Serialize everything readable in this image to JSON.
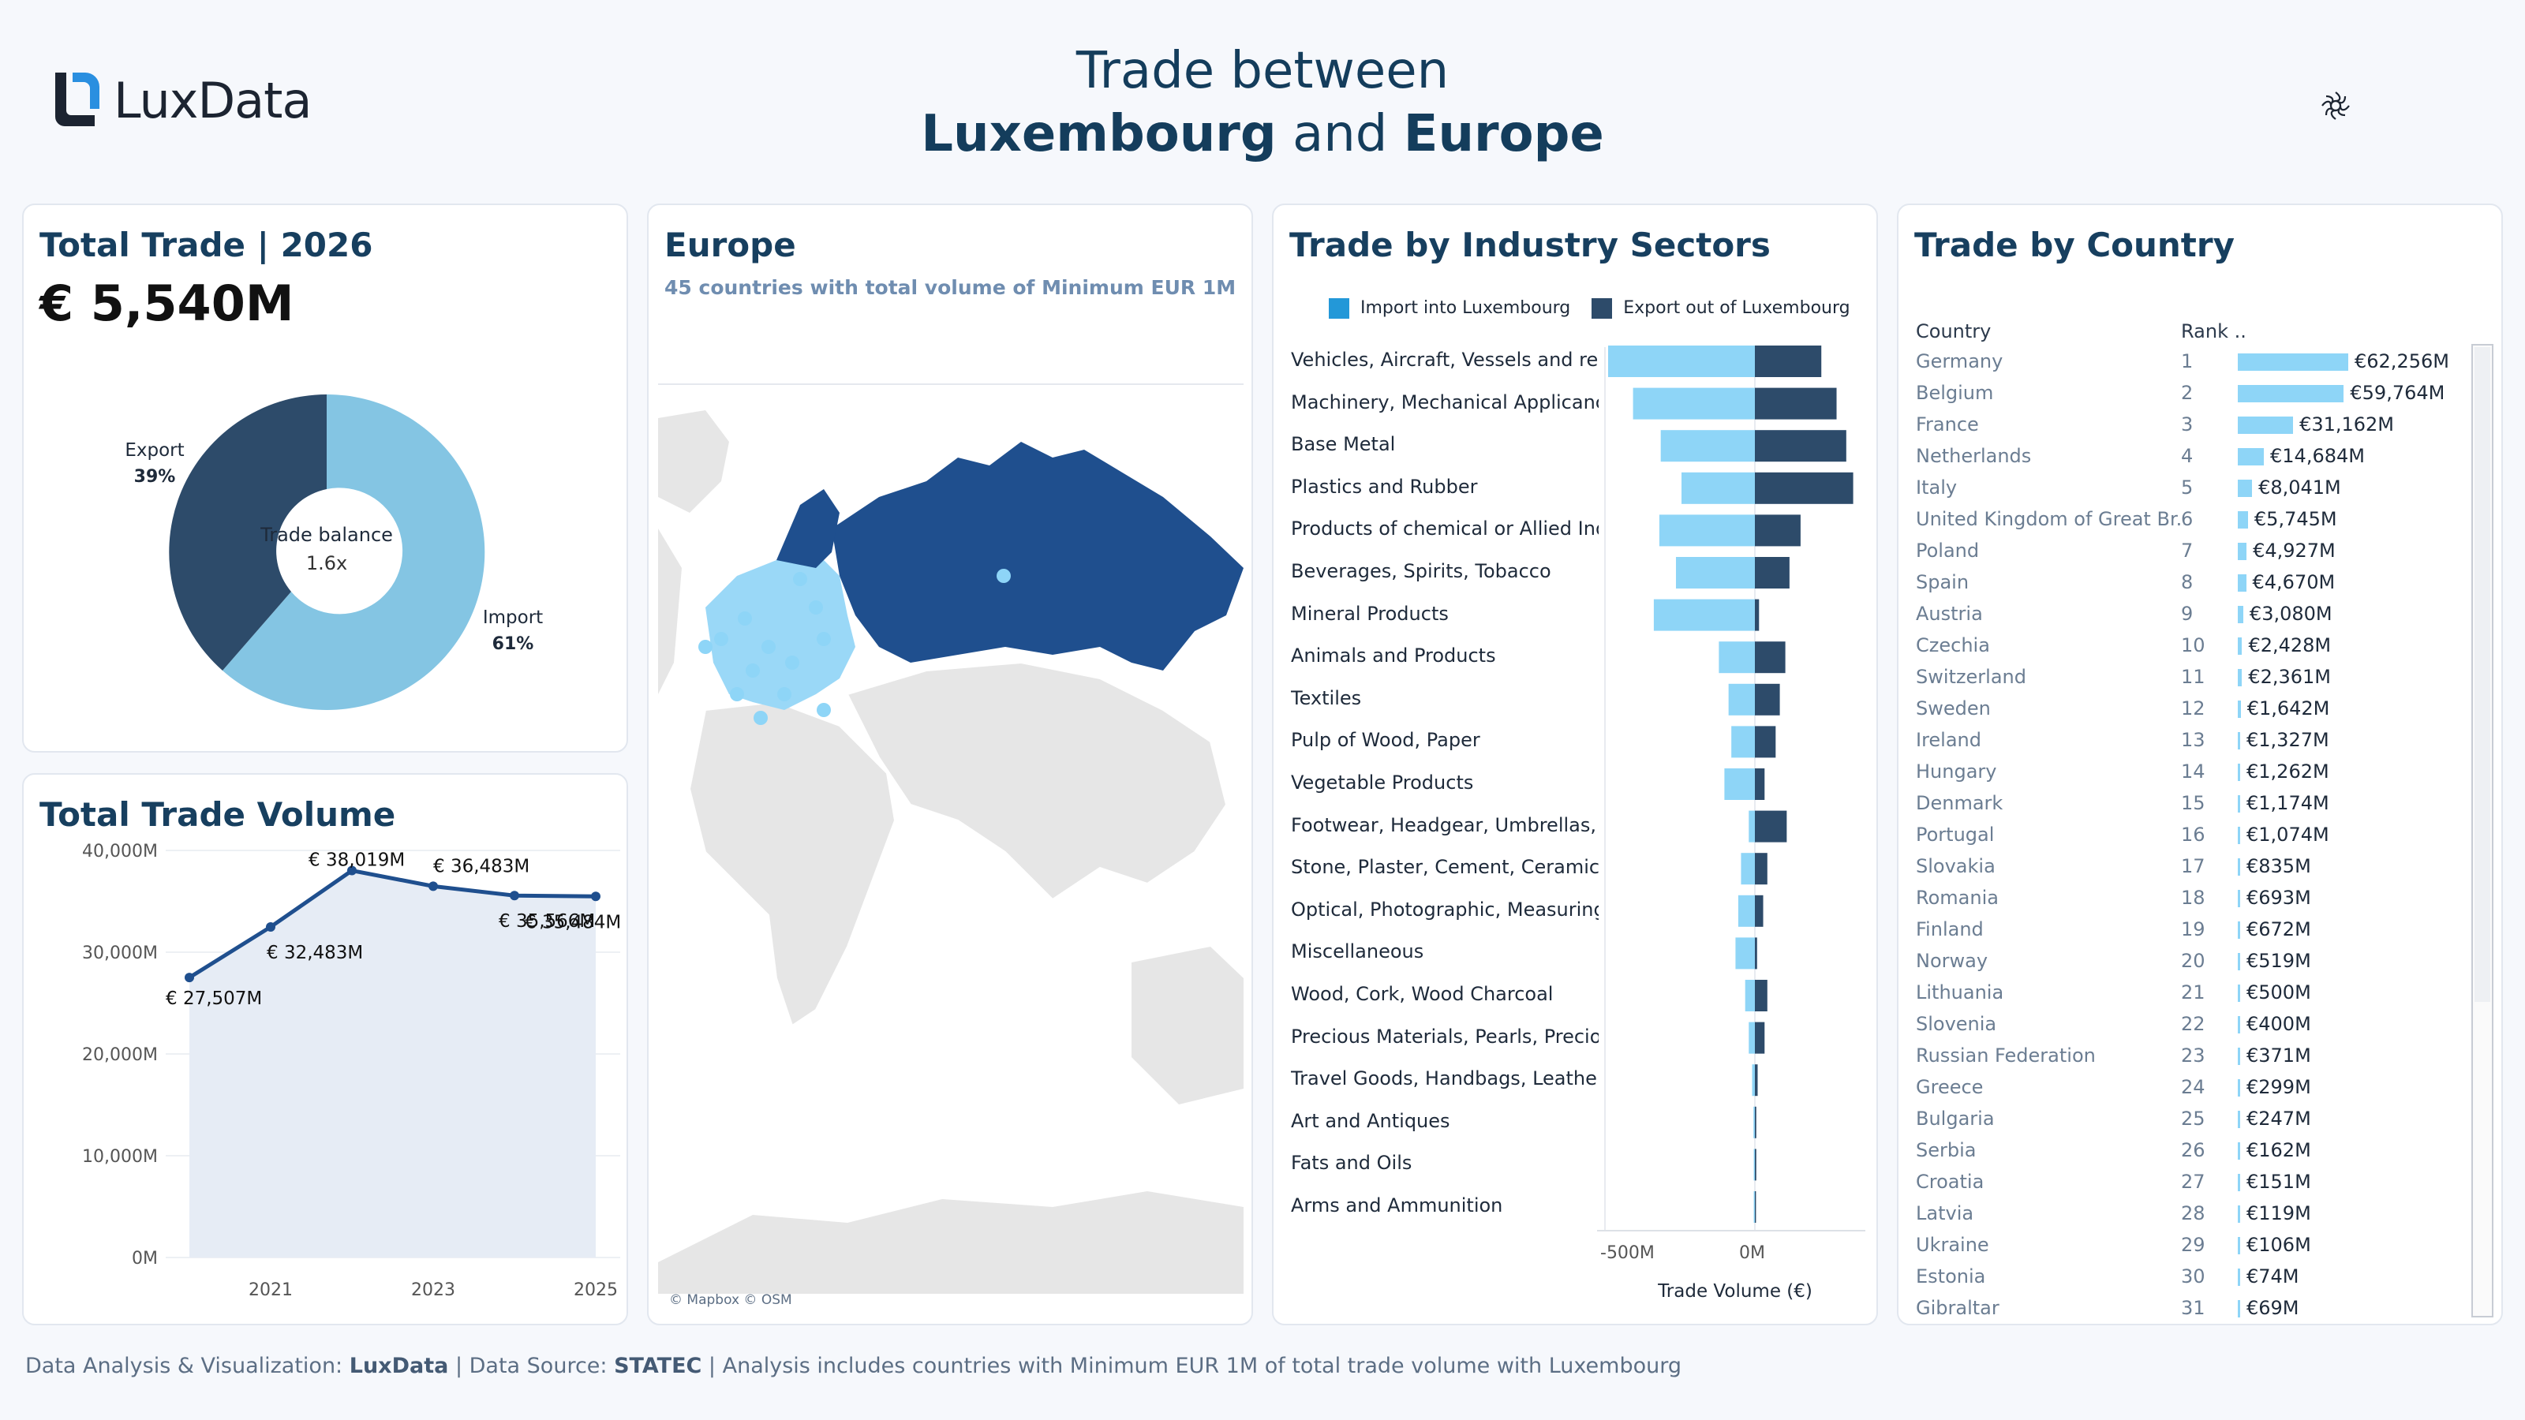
{
  "brand": {
    "name": "LuxData"
  },
  "title": {
    "line1": "Trade between",
    "l2_a": "Luxembourg",
    "l2_and": "and",
    "l2_b": "Europe"
  },
  "settings_icon": "settings-icon",
  "total_trade": {
    "heading": "Total Trade | 2026",
    "value": "€ 5,540M",
    "center_label": "Trade balance",
    "center_value": "1.6x",
    "export_label": "Export",
    "export_pct": "39%",
    "import_label": "Import",
    "import_pct": "61%",
    "colors": {
      "import": "#84c5e3",
      "export": "#2d4b6a"
    }
  },
  "volume": {
    "heading": "Total Trade Volume",
    "yticks": [
      "40,000M",
      "30,000M",
      "20,000M",
      "10,000M",
      "0M"
    ],
    "xticks": [
      "2021",
      "2023",
      "2025"
    ],
    "labels": [
      "€ 27,507M",
      "€ 32,483M",
      "€ 38,019M",
      "€ 36,483M",
      "€ 35,566M",
      "€ 35,484M"
    ]
  },
  "map": {
    "heading": "Europe",
    "subtitle": "45 countries with total volume of Minimum EUR 1M",
    "attribution": "© Mapbox © OSM"
  },
  "sectors": {
    "heading": "Trade by Industry Sectors",
    "legend_import": "Import into Luxembourg",
    "legend_export": "Export out of Luxembourg",
    "x_labels": [
      "-500M",
      "0M"
    ],
    "x_title": "Trade Volume (€)",
    "items": [
      "Vehicles, Aircraft, Vessels and rel..",
      "Machinery, Mechanical Applicanc..",
      "Base Metal",
      "Plastics and Rubber",
      "Products of chemical or Allied Ind..",
      "Beverages, Spirits, Tobacco",
      "Mineral Products",
      "Animals and Products",
      "Textiles",
      "Pulp of Wood, Paper",
      "Vegetable Products",
      "Footwear, Headgear, Umbrellas, ..",
      "Stone, Plaster, Cement, Ceramic, ..",
      "Optical, Photographic, Measuring..",
      "Miscellaneous",
      "Wood, Cork, Wood Charcoal",
      "Precious Materials, Pearls, Precio..",
      "Travel Goods, Handbags, Leather",
      "Art and Antiques",
      "Fats and Oils",
      "Arms and Ammunition"
    ]
  },
  "chart_data": {
    "type": "bar",
    "title": "Trade by Industry Sectors",
    "xlabel": "Trade Volume (€)",
    "categories": [
      "Vehicles, Aircraft, Vessels and rel..",
      "Machinery, Mechanical Applicanc..",
      "Base Metal",
      "Plastics and Rubber",
      "Products of chemical or Allied Ind..",
      "Beverages, Spirits, Tobacco",
      "Mineral Products",
      "Animals and Products",
      "Textiles",
      "Pulp of Wood, Paper",
      "Vegetable Products",
      "Footwear, Headgear, Umbrellas, ..",
      "Stone, Plaster, Cement, Ceramic, ..",
      "Optical, Photographic, Measuring..",
      "Miscellaneous",
      "Wood, Cork, Wood Charcoal",
      "Precious Materials, Pearls, Precio..",
      "Travel Goods, Handbags, Leather",
      "Art and Antiques",
      "Fats and Oils",
      "Arms and Ammunition"
    ],
    "series": [
      {
        "name": "Import into Luxembourg",
        "color": "#8ed5f7",
        "values": [
          -530,
          -440,
          -340,
          -265,
          -345,
          -285,
          -365,
          -130,
          -95,
          -85,
          -110,
          -22,
          -50,
          -60,
          -70,
          -35,
          -22,
          -10,
          -5,
          -4,
          -4
        ]
      },
      {
        "name": "Export out of Luxembourg",
        "color": "#2d4b6a",
        "values": [
          240,
          295,
          330,
          355,
          165,
          125,
          15,
          110,
          90,
          75,
          35,
          115,
          45,
          30,
          8,
          45,
          35,
          10,
          5,
          5,
          4
        ]
      }
    ],
    "xlim": [
      -530,
      360
    ]
  },
  "volume_chart": {
    "type": "line",
    "x": [
      2020,
      2021,
      2022,
      2023,
      2024,
      2025
    ],
    "values": [
      27507,
      32483,
      38019,
      36483,
      35566,
      35484
    ],
    "ylim": [
      0,
      40000
    ]
  },
  "countries": {
    "col_country": "Country",
    "col_rank": "Rank ..",
    "rows": [
      {
        "name": "Germany",
        "rank": "1",
        "value": "€62,256M",
        "v": 62256
      },
      {
        "name": "Belgium",
        "rank": "2",
        "value": "€59,764M",
        "v": 59764
      },
      {
        "name": "France",
        "rank": "3",
        "value": "€31,162M",
        "v": 31162
      },
      {
        "name": "Netherlands",
        "rank": "4",
        "value": "€14,684M",
        "v": 14684
      },
      {
        "name": "Italy",
        "rank": "5",
        "value": "€8,041M",
        "v": 8041
      },
      {
        "name": "United Kingdom of Great Br..",
        "rank": "6",
        "value": "€5,745M",
        "v": 5745
      },
      {
        "name": "Poland",
        "rank": "7",
        "value": "€4,927M",
        "v": 4927
      },
      {
        "name": "Spain",
        "rank": "8",
        "value": "€4,670M",
        "v": 4670
      },
      {
        "name": "Austria",
        "rank": "9",
        "value": "€3,080M",
        "v": 3080
      },
      {
        "name": "Czechia",
        "rank": "10",
        "value": "€2,428M",
        "v": 2428
      },
      {
        "name": "Switzerland",
        "rank": "11",
        "value": "€2,361M",
        "v": 2361
      },
      {
        "name": "Sweden",
        "rank": "12",
        "value": "€1,642M",
        "v": 1642
      },
      {
        "name": "Ireland",
        "rank": "13",
        "value": "€1,327M",
        "v": 1327
      },
      {
        "name": "Hungary",
        "rank": "14",
        "value": "€1,262M",
        "v": 1262
      },
      {
        "name": "Denmark",
        "rank": "15",
        "value": "€1,174M",
        "v": 1174
      },
      {
        "name": "Portugal",
        "rank": "16",
        "value": "€1,074M",
        "v": 1074
      },
      {
        "name": "Slovakia",
        "rank": "17",
        "value": "€835M",
        "v": 835
      },
      {
        "name": "Romania",
        "rank": "18",
        "value": "€693M",
        "v": 693
      },
      {
        "name": "Finland",
        "rank": "19",
        "value": "€672M",
        "v": 672
      },
      {
        "name": "Norway",
        "rank": "20",
        "value": "€519M",
        "v": 519
      },
      {
        "name": "Lithuania",
        "rank": "21",
        "value": "€500M",
        "v": 500
      },
      {
        "name": "Slovenia",
        "rank": "22",
        "value": "€400M",
        "v": 400
      },
      {
        "name": "Russian Federation",
        "rank": "23",
        "value": "€371M",
        "v": 371
      },
      {
        "name": "Greece",
        "rank": "24",
        "value": "€299M",
        "v": 299
      },
      {
        "name": "Bulgaria",
        "rank": "25",
        "value": "€247M",
        "v": 247
      },
      {
        "name": "Serbia",
        "rank": "26",
        "value": "€162M",
        "v": 162
      },
      {
        "name": "Croatia",
        "rank": "27",
        "value": "€151M",
        "v": 151
      },
      {
        "name": "Latvia",
        "rank": "28",
        "value": "€119M",
        "v": 119
      },
      {
        "name": "Ukraine",
        "rank": "29",
        "value": "€106M",
        "v": 106
      },
      {
        "name": "Estonia",
        "rank": "30",
        "value": "€74M",
        "v": 74
      },
      {
        "name": "Gibraltar",
        "rank": "31",
        "value": "€69M",
        "v": 69
      }
    ]
  },
  "footer": {
    "p1": "Data Analysis & Visualization: ",
    "b1": "LuxData",
    "p2": " | Data Source: ",
    "b2": "STATEC",
    "p3": " | Analysis includes countries with Minimum EUR 1M of total trade volume with Luxembourg"
  }
}
